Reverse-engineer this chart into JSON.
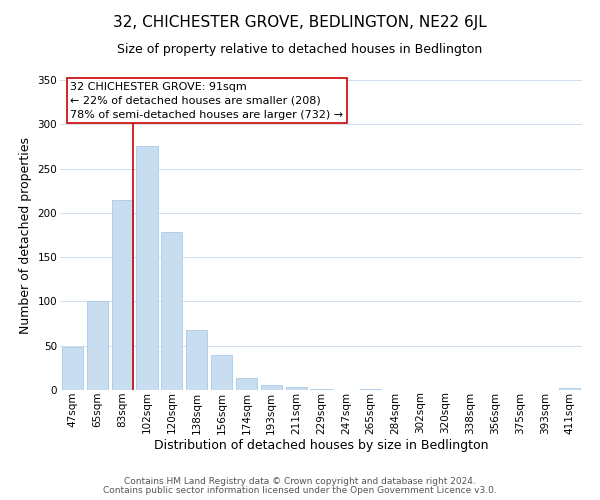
{
  "title": "32, CHICHESTER GROVE, BEDLINGTON, NE22 6JL",
  "subtitle": "Size of property relative to detached houses in Bedlington",
  "xlabel": "Distribution of detached houses by size in Bedlington",
  "ylabel": "Number of detached properties",
  "bar_labels": [
    "47sqm",
    "65sqm",
    "83sqm",
    "102sqm",
    "120sqm",
    "138sqm",
    "156sqm",
    "174sqm",
    "193sqm",
    "211sqm",
    "229sqm",
    "247sqm",
    "265sqm",
    "284sqm",
    "302sqm",
    "320sqm",
    "338sqm",
    "356sqm",
    "375sqm",
    "393sqm",
    "411sqm"
  ],
  "bar_values": [
    48,
    100,
    215,
    275,
    178,
    68,
    40,
    14,
    6,
    3,
    1,
    0,
    1,
    0,
    0,
    0,
    0,
    0,
    0,
    0,
    2
  ],
  "bar_color": "#c8ddf0",
  "bar_edge_color": "#a8c8e8",
  "vline_color": "#cc0000",
  "ylim": [
    0,
    350
  ],
  "yticks": [
    0,
    50,
    100,
    150,
    200,
    250,
    300,
    350
  ],
  "annotation_title": "32 CHICHESTER GROVE: 91sqm",
  "annotation_line1": "← 22% of detached houses are smaller (208)",
  "annotation_line2": "78% of semi-detached houses are larger (732) →",
  "annotation_box_color": "#ffffff",
  "annotation_box_edge": "#cc0000",
  "footer_line1": "Contains HM Land Registry data © Crown copyright and database right 2024.",
  "footer_line2": "Contains public sector information licensed under the Open Government Licence v3.0.",
  "background_color": "#ffffff",
  "grid_color": "#d0dff0",
  "title_fontsize": 11,
  "subtitle_fontsize": 9,
  "axis_label_fontsize": 9,
  "tick_fontsize": 7.5,
  "annotation_fontsize": 8,
  "footer_fontsize": 6.5
}
